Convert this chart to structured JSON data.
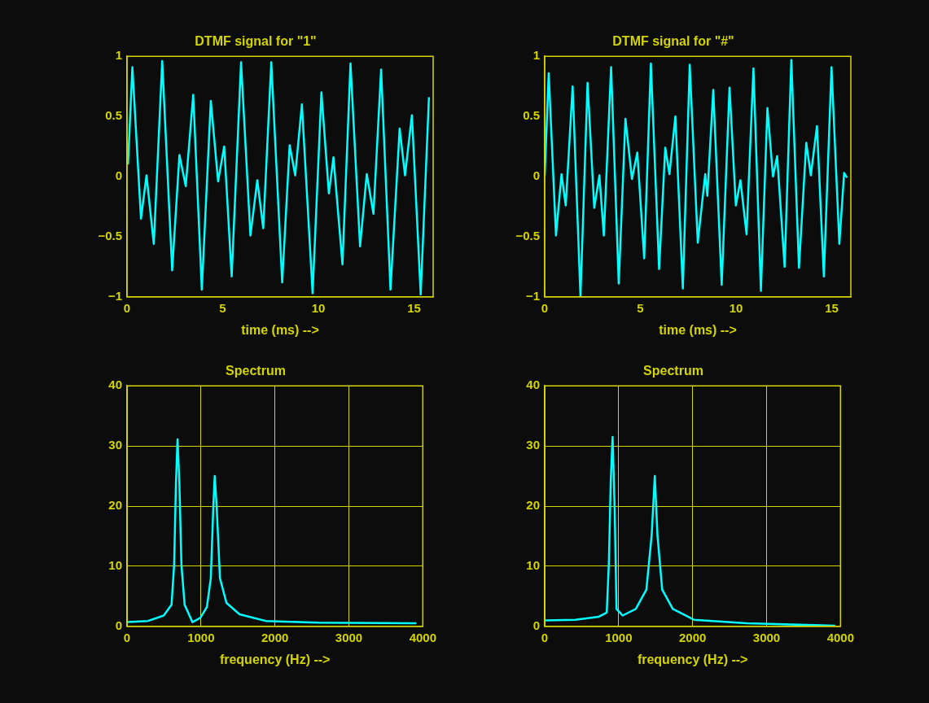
{
  "chart_data": [
    {
      "type": "line",
      "title": "DTMF signal for \"1\"",
      "xlabel": "time (ms) -->",
      "xlim": [
        0,
        16
      ],
      "xticks": [
        0,
        5,
        10,
        15
      ],
      "ylim": [
        -1,
        1
      ],
      "yticks": [
        -1,
        -0.5,
        0,
        0.5,
        1
      ],
      "grid": false,
      "legend": false,
      "marker": "none",
      "line_style": "solid",
      "series": [
        {
          "color": "#00ffff",
          "x": [
            0.05,
            0.28,
            0.73,
            1.02,
            1.4,
            1.84,
            2.36,
            2.74,
            3.07,
            3.46,
            3.91,
            4.38,
            4.76,
            5.08,
            5.47,
            5.96,
            6.45,
            6.81,
            7.12,
            7.54,
            8.11,
            8.5,
            8.79,
            9.14,
            9.7,
            10.16,
            10.55,
            10.79,
            11.26,
            11.68,
            12.18,
            12.53,
            12.88,
            13.28,
            13.77,
            14.25,
            14.53,
            14.89,
            15.35,
            15.78
          ],
          "values": [
            0.1,
            0.91,
            -0.35,
            0.01,
            -0.56,
            0.96,
            -0.78,
            0.18,
            -0.08,
            0.68,
            -0.94,
            0.63,
            -0.04,
            0.25,
            -0.83,
            0.95,
            -0.49,
            -0.03,
            -0.43,
            0.95,
            -0.88,
            0.26,
            0.01,
            0.6,
            -0.97,
            0.7,
            -0.14,
            0.16,
            -0.73,
            0.94,
            -0.58,
            0.02,
            -0.31,
            0.89,
            -0.94,
            0.4,
            0.01,
            0.51,
            -0.98,
            0.66
          ]
        }
      ]
    },
    {
      "type": "line",
      "title": "DTMF signal for \"#\"",
      "xlabel": "time (ms) -->",
      "xlim": [
        0,
        16
      ],
      "xticks": [
        0,
        5,
        10,
        15
      ],
      "ylim": [
        -1,
        1
      ],
      "yticks": [
        -1,
        -0.5,
        0,
        0.5,
        1
      ],
      "grid": false,
      "legend": false,
      "marker": "none",
      "line_style": "solid",
      "series": [
        {
          "color": "#00ffff",
          "x": [
            0,
            0.21,
            0.59,
            0.88,
            1.1,
            1.46,
            1.87,
            2.24,
            2.59,
            2.86,
            3.09,
            3.47,
            3.87,
            4.22,
            4.56,
            4.84,
            5.2,
            5.55,
            5.98,
            6.3,
            6.52,
            6.83,
            7.22,
            7.58,
            8.0,
            8.39,
            8.5,
            8.81,
            9.25,
            9.66,
            9.99,
            10.23,
            10.55,
            10.91,
            11.3,
            11.64,
            11.93,
            12.15,
            12.54,
            12.89,
            13.29,
            13.67,
            13.91,
            14.23,
            14.59,
            14.99,
            15.4,
            15.65,
            15.8
          ],
          "values": [
            0.01,
            0.86,
            -0.49,
            0.02,
            -0.24,
            0.75,
            -1,
            0.78,
            -0.26,
            0.01,
            -0.49,
            0.91,
            -0.89,
            0.48,
            -0.02,
            0.2,
            -0.68,
            0.94,
            -0.77,
            0.24,
            0.02,
            0.5,
            -0.93,
            0.93,
            -0.55,
            0.02,
            -0.16,
            0.72,
            -0.9,
            0.74,
            -0.24,
            -0.03,
            -0.48,
            0.9,
            -0.95,
            0.57,
            0,
            0.17,
            -0.75,
            0.97,
            -0.76,
            0.28,
            0.01,
            0.42,
            -0.83,
            0.91,
            -0.56,
            0.03,
            -0.01
          ]
        }
      ]
    },
    {
      "type": "line",
      "title": "Spectrum",
      "xlabel": "frequency (Hz) -->",
      "xlim": [
        0,
        4000
      ],
      "xticks": [
        0,
        1000,
        2000,
        3000,
        4000
      ],
      "ylim": [
        0,
        40
      ],
      "yticks": [
        0,
        10,
        20,
        30,
        40
      ],
      "grid": true,
      "legend": false,
      "marker": "none",
      "line_style": "solid",
      "series": [
        {
          "color": "#00ffff",
          "x": [
            0,
            283,
            496,
            602,
            637,
            662,
            683,
            708,
            736,
            779,
            885,
            991,
            1080,
            1133,
            1168,
            1186,
            1211,
            1257,
            1345,
            1522,
            1876,
            2584,
            3912
          ],
          "values": [
            0.7,
            0.9,
            1.8,
            3.6,
            10.2,
            23.9,
            31.1,
            23.9,
            10.2,
            3.6,
            0.7,
            1.4,
            3.2,
            8,
            20.2,
            25,
            20.2,
            8,
            3.9,
            2,
            0.9,
            0.6,
            0.5
          ]
        }
      ]
    },
    {
      "type": "line",
      "title": "Spectrum",
      "xlabel": "frequency (Hz) -->",
      "xlim": [
        0,
        4000
      ],
      "xticks": [
        0,
        1000,
        2000,
        3000,
        4000
      ],
      "ylim": [
        0,
        40
      ],
      "yticks": [
        0,
        10,
        20,
        30,
        40
      ],
      "grid": true,
      "legend": false,
      "marker": "none",
      "line_style": "solid",
      "series": [
        {
          "color": "#00ffff",
          "x": [
            0,
            411,
            732,
            839,
            868,
            893,
            918,
            946,
            971,
            1054,
            1232,
            1375,
            1446,
            1489,
            1525,
            1589,
            1732,
            2018,
            2732,
            3929
          ],
          "values": [
            1,
            1.1,
            1.6,
            2.3,
            10.6,
            24.1,
            31.5,
            19.6,
            2.9,
            1.8,
            2.9,
            6.1,
            15.1,
            25,
            15.1,
            6.1,
            2.9,
            1.1,
            0.5,
            0.1
          ]
        }
      ]
    }
  ]
}
